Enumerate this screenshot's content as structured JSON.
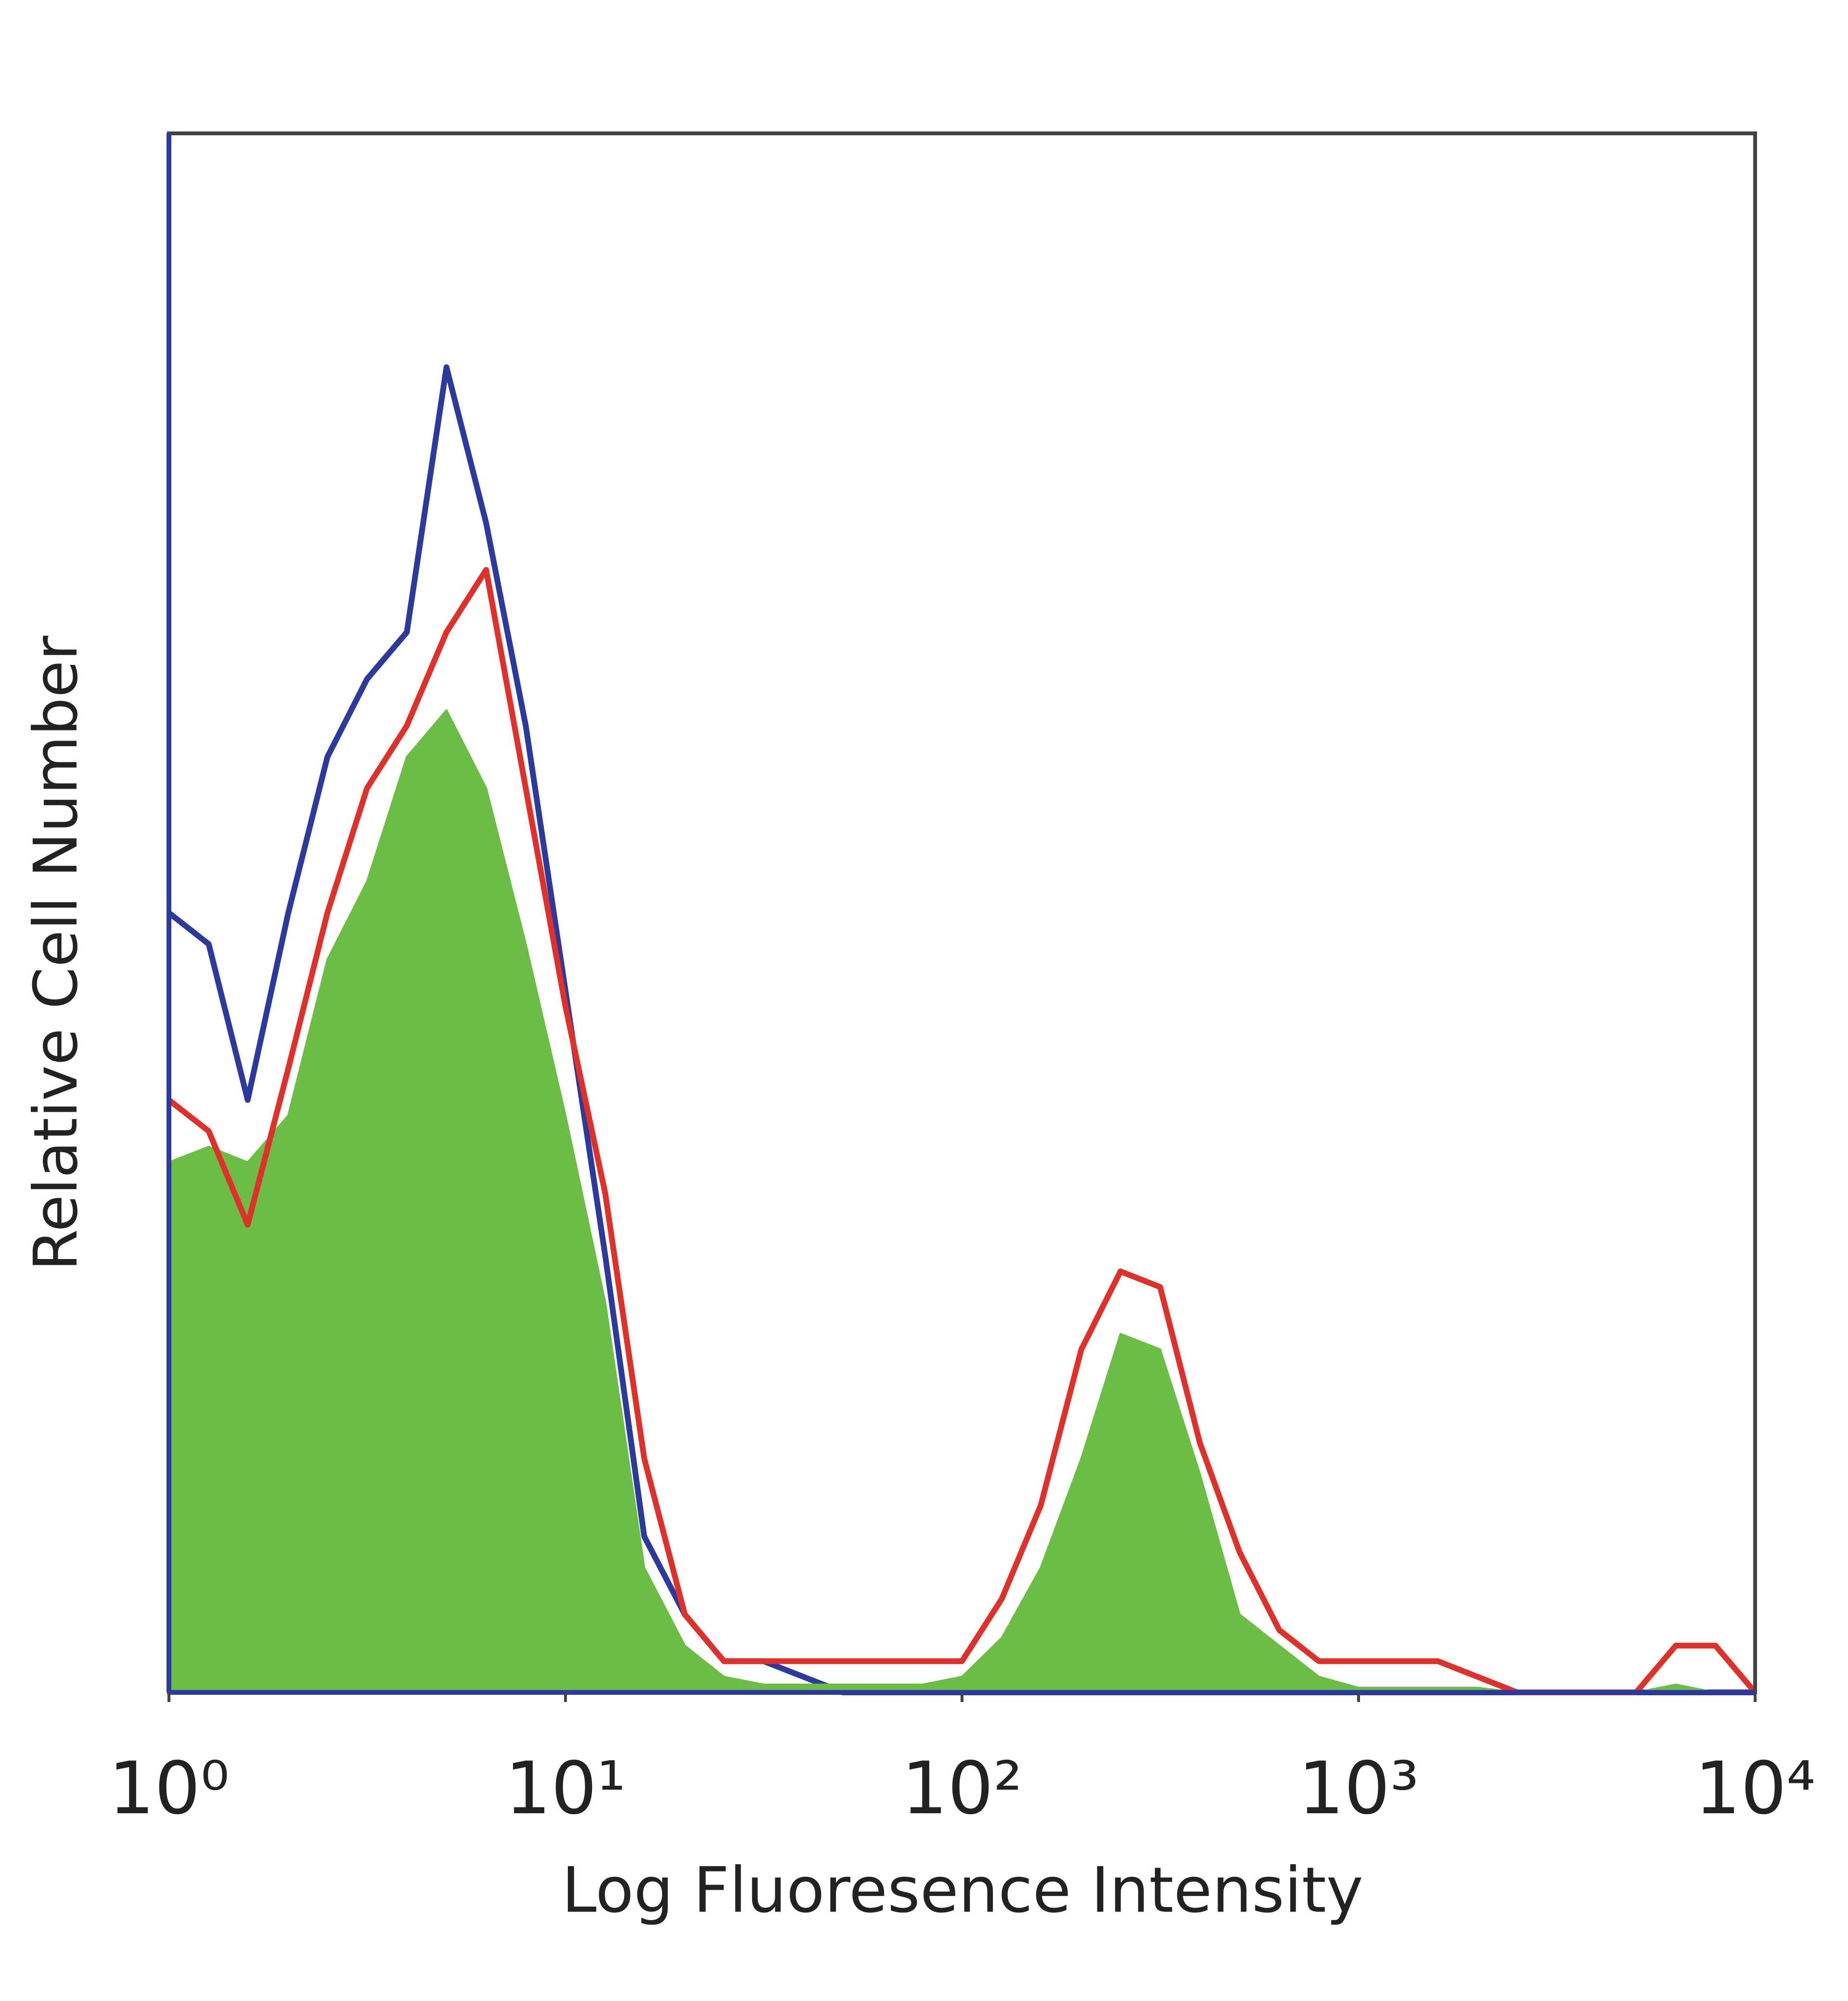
{
  "chart_data": {
    "type": "histogram",
    "x_label": "Log Fluoresence Intensity",
    "y_label": "Relative Cell Number",
    "log_x": true,
    "x": [
      1,
      1.26,
      1.58,
      2,
      2.51,
      3.16,
      3.98,
      5.01,
      6.31,
      7.94,
      10,
      12.6,
      15.8,
      20,
      25.1,
      31.6,
      39.8,
      50.1,
      63.1,
      79.4,
      100,
      126,
      158,
      200,
      251,
      316,
      398,
      501,
      631,
      794,
      1000,
      1259,
      1585,
      1995,
      2512,
      3162,
      3981,
      5012,
      6310,
      7943,
      10000
    ],
    "xlim": [
      1,
      10000
    ],
    "xticks": [
      {
        "value": 1,
        "label": "10⁰"
      },
      {
        "value": 10,
        "label": "10¹"
      },
      {
        "value": 100,
        "label": "10²"
      },
      {
        "value": 1000,
        "label": "10³"
      },
      {
        "value": 10000,
        "label": "10⁴"
      }
    ],
    "ylim": [
      0,
      100
    ],
    "series": [
      {
        "color": "#2b3a9c",
        "filled": false,
        "values": [
          50,
          48,
          38,
          50,
          60,
          65,
          68,
          85,
          75,
          62,
          45,
          28,
          10,
          5,
          2,
          2,
          1,
          0,
          0,
          0,
          0,
          0,
          0,
          0,
          0,
          0,
          0,
          0,
          0,
          0,
          0,
          0,
          0,
          0,
          0,
          0,
          0,
          0,
          0,
          0,
          0
        ]
      },
      {
        "color": "#6cbd45",
        "filled": true,
        "values": [
          34,
          35,
          34,
          37,
          47,
          52,
          60,
          63,
          58,
          48,
          37,
          25,
          8,
          3,
          1,
          0.5,
          0.5,
          0.5,
          0.5,
          0.5,
          1,
          3.5,
          8,
          15,
          23,
          22,
          14,
          5,
          3,
          1,
          0.3,
          0.3,
          0.3,
          0.3,
          0,
          0,
          0,
          0,
          0.5,
          0,
          0
        ]
      },
      {
        "color": "#e0302a",
        "filled": false,
        "values": [
          38,
          36,
          30,
          40,
          50,
          58,
          62,
          68,
          72,
          58,
          44,
          32,
          15,
          5,
          2,
          2,
          2,
          2,
          2,
          2,
          2,
          6,
          12,
          22,
          27,
          26,
          16,
          9,
          4,
          2,
          2,
          2,
          2,
          1,
          0,
          0,
          0,
          0,
          3,
          3,
          0
        ]
      }
    ]
  }
}
